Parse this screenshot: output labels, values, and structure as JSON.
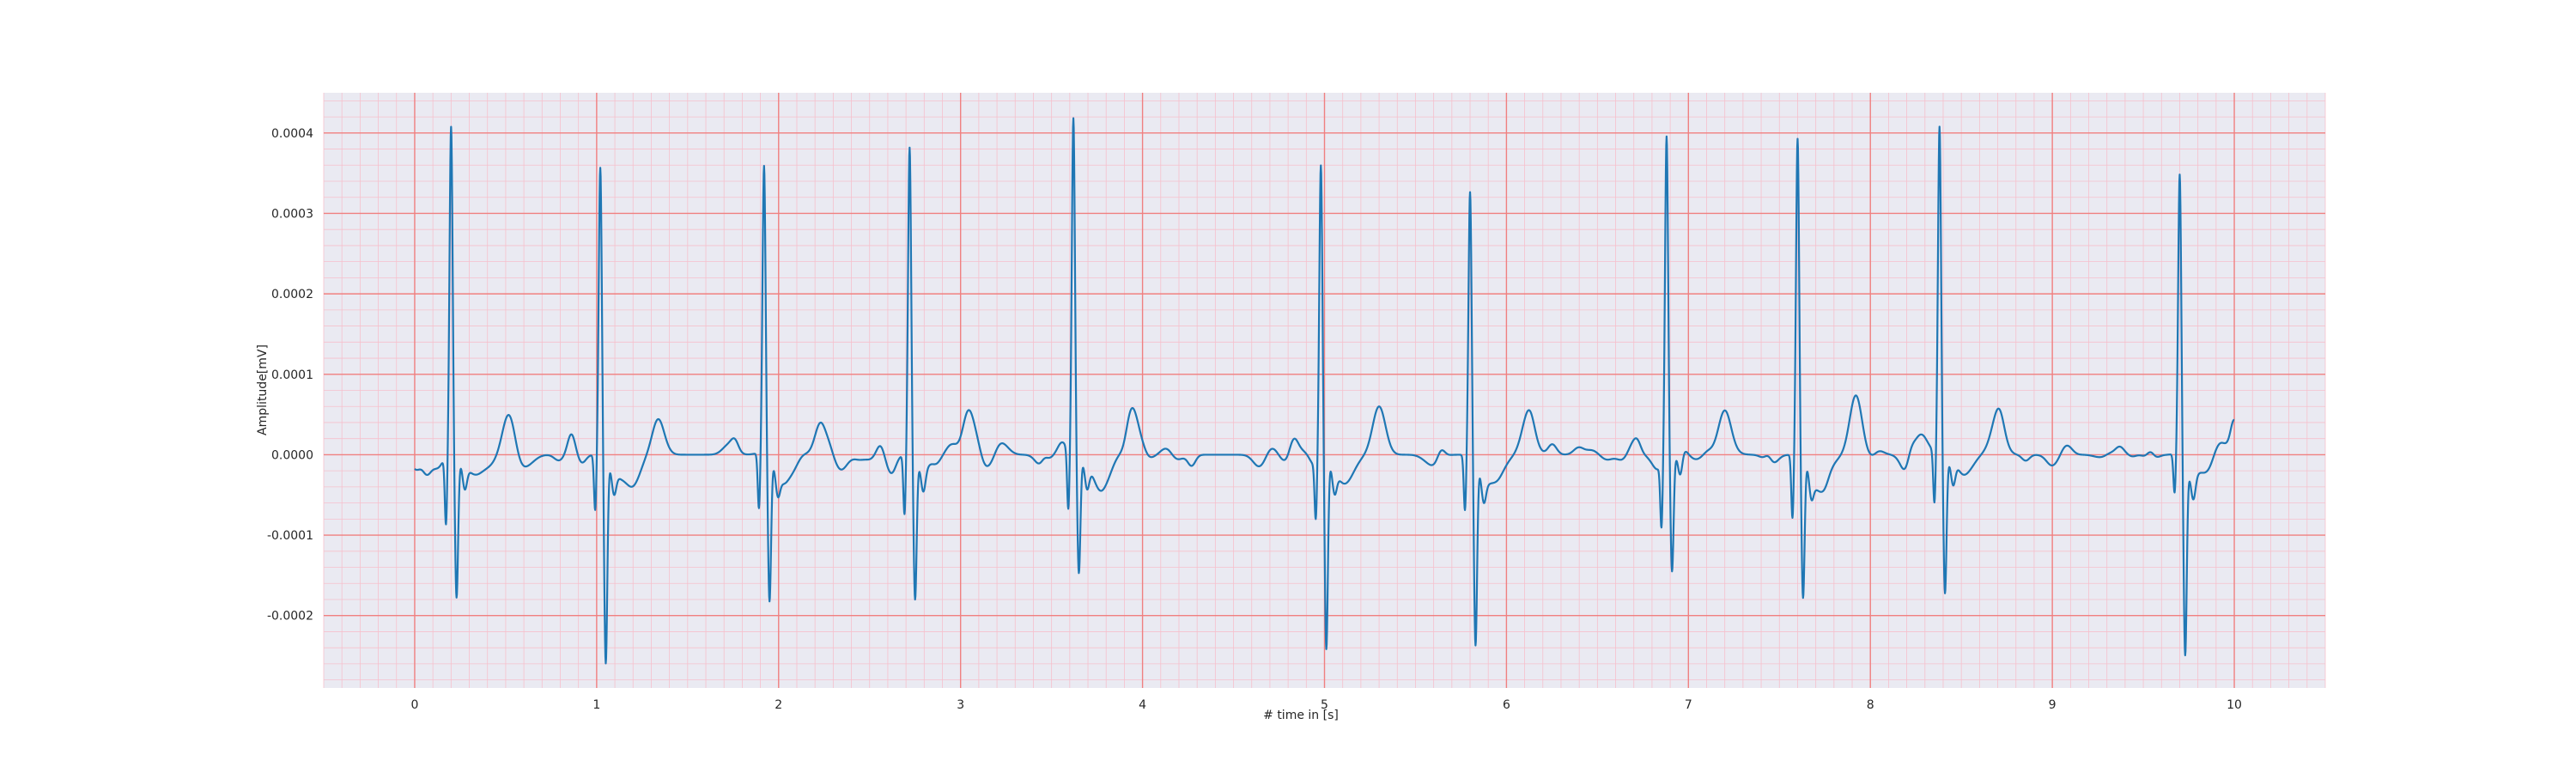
{
  "chart_data": {
    "type": "line",
    "title": "",
    "xlabel": "# time in [s]",
    "ylabel": "Amplitude[mV]",
    "xlim": [
      -0.5,
      10.5
    ],
    "ylim": [
      -0.00029,
      0.00045
    ],
    "xticks": [
      0,
      1,
      2,
      3,
      4,
      5,
      6,
      7,
      8,
      9,
      10
    ],
    "xtick_labels": [
      "0",
      "1",
      "2",
      "3",
      "4",
      "5",
      "6",
      "7",
      "8",
      "9",
      "10"
    ],
    "yticks": [
      -0.0002,
      -0.0001,
      0.0,
      0.0001,
      0.0002,
      0.0003,
      0.0004
    ],
    "ytick_labels": [
      "-0.0002",
      "-0.0001",
      "0.0000",
      "0.0001",
      "0.0002",
      "0.0003",
      "0.0004"
    ],
    "grid": {
      "major": true,
      "minor": true,
      "major_color": "#f08080",
      "minor_color": "#f6c0cc"
    },
    "background_color": "#eaeaf2",
    "line_color": "#1f77b4",
    "beats": [
      {
        "r_time": 0.2,
        "r_peak": 0.000405,
        "q_min": -8.5e-05,
        "s_min": -0.000175,
        "t_amp": 5.5e-05
      },
      {
        "r_time": 1.02,
        "r_peak": 0.000355,
        "q_min": -7e-05,
        "s_min": -0.000255,
        "t_amp": 3.5e-05
      },
      {
        "r_time": 1.92,
        "r_peak": 0.000355,
        "q_min": -7e-05,
        "s_min": -0.00018,
        "t_amp": 5e-05
      },
      {
        "r_time": 2.72,
        "r_peak": 0.00038,
        "q_min": -7.5e-05,
        "s_min": -0.000175,
        "t_amp": 6e-05
      },
      {
        "r_time": 3.62,
        "r_peak": 0.000415,
        "q_min": -7.5e-05,
        "s_min": -0.000145,
        "t_amp": 6e-05
      },
      {
        "r_time": 4.98,
        "r_peak": 0.00036,
        "q_min": -7e-05,
        "s_min": -0.00024,
        "t_amp": 6e-05
      },
      {
        "r_time": 5.8,
        "r_peak": 0.000325,
        "q_min": -7e-05,
        "s_min": -0.00023,
        "t_amp": 5e-05
      },
      {
        "r_time": 6.88,
        "r_peak": 0.000395,
        "q_min": -8e-05,
        "s_min": -0.000145,
        "t_amp": 5.5e-05
      },
      {
        "r_time": 7.6,
        "r_peak": 0.00039,
        "q_min": -8e-05,
        "s_min": -0.000175,
        "t_amp": 6e-05
      },
      {
        "r_time": 8.38,
        "r_peak": 0.000405,
        "q_min": -6.5e-05,
        "s_min": -0.00017,
        "t_amp": 5e-05
      },
      {
        "r_time": 9.7,
        "r_peak": 0.000345,
        "q_min": -5e-05,
        "s_min": -0.00024,
        "t_amp": 0.0
      }
    ],
    "signal_start": [
      0.0,
      -1e-05
    ],
    "signal_end": [
      10.0,
      4e-05
    ]
  }
}
